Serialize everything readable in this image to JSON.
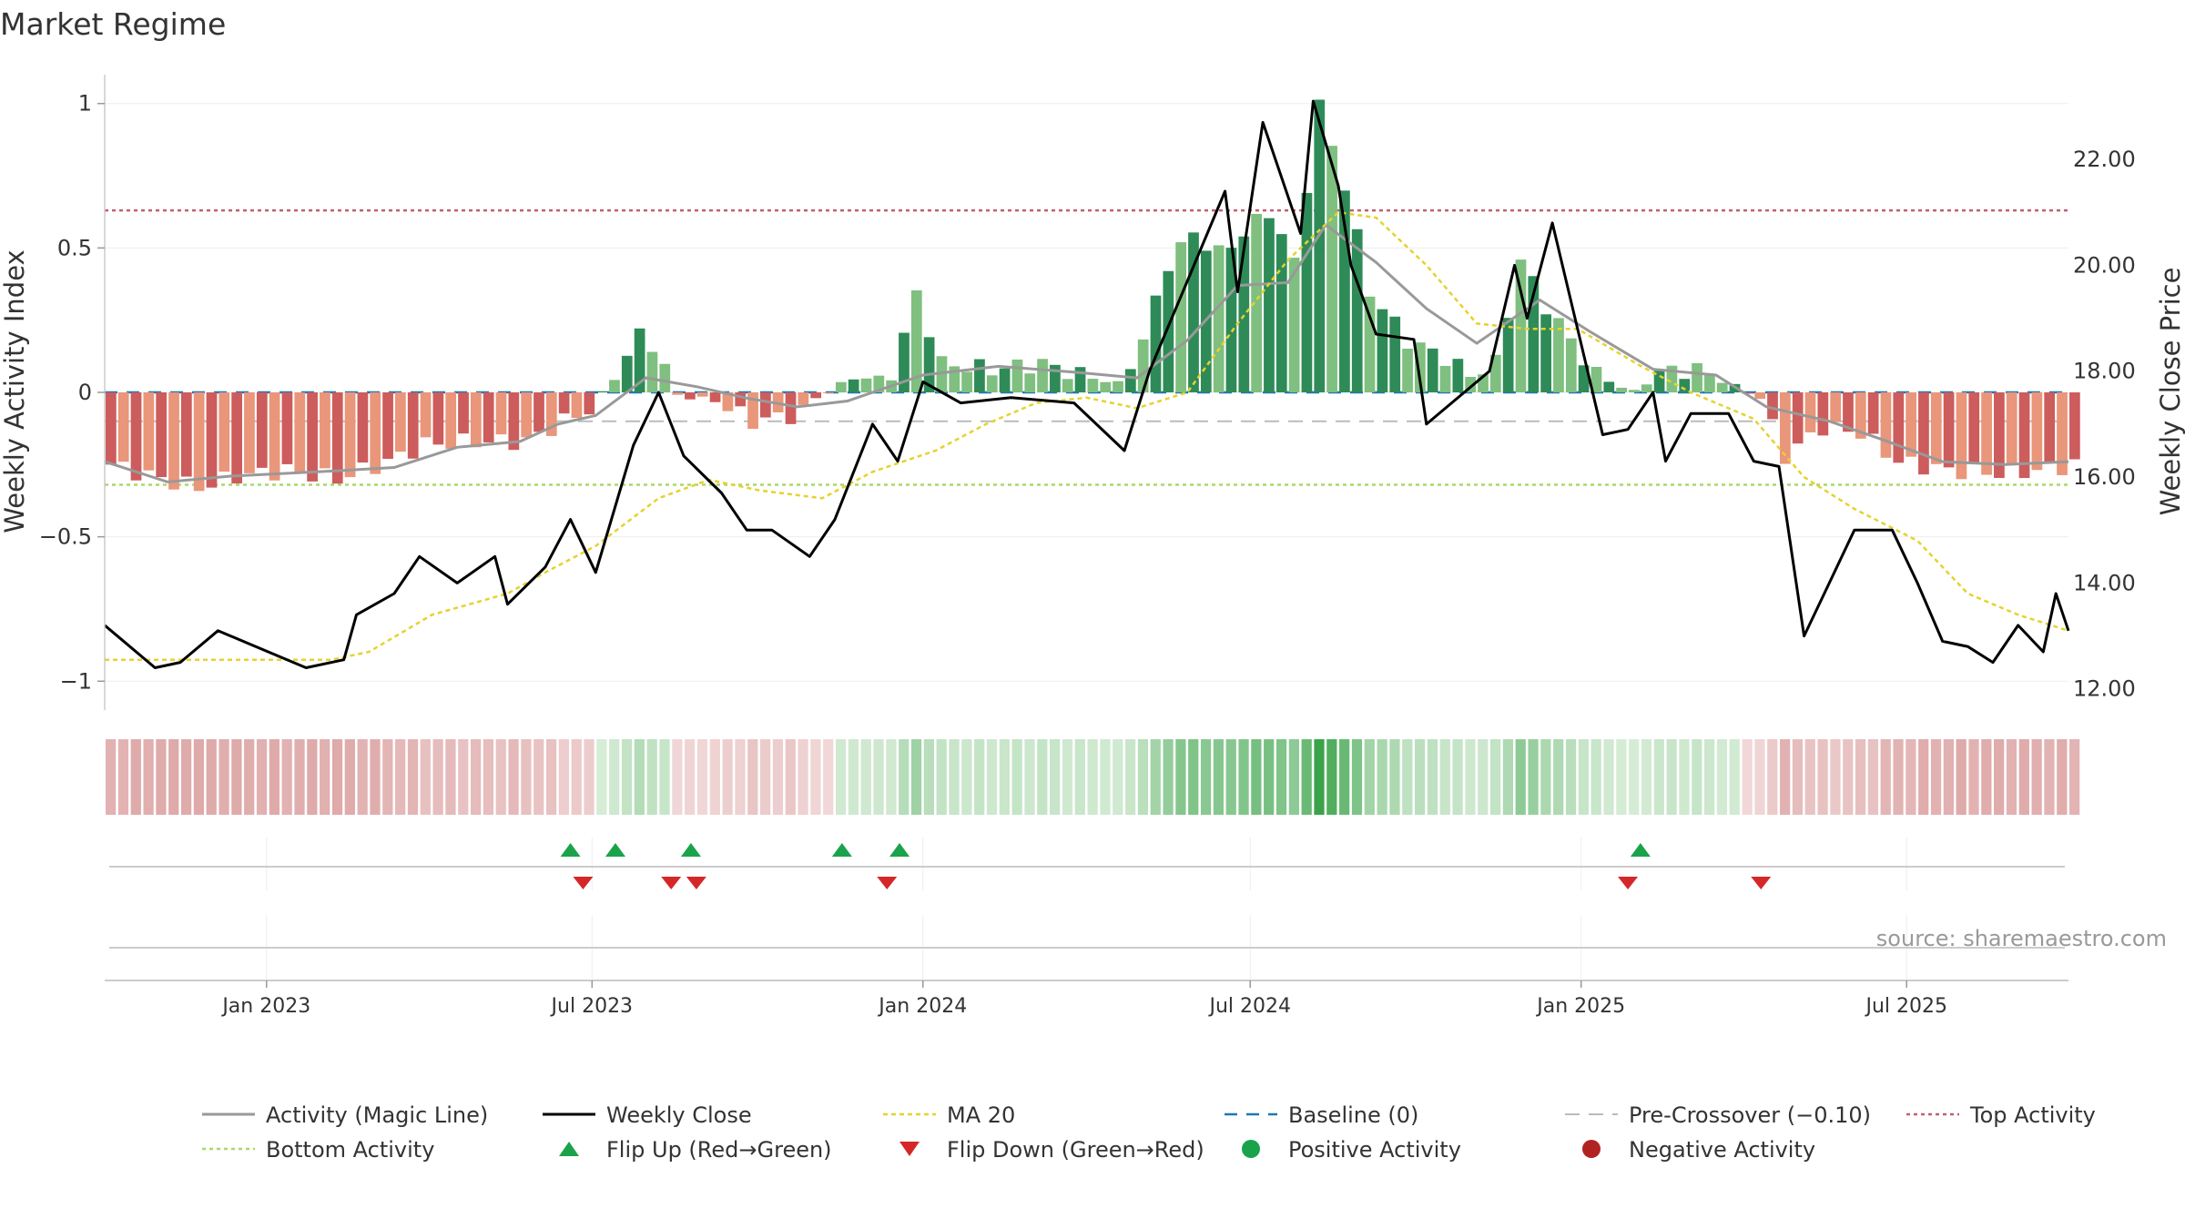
{
  "chart_data": {
    "type": "bar+line",
    "title": "Market Regime",
    "ylabel_left": "Weekly Activity Index",
    "ylabel_right": "Weekly Close Price",
    "ylim_left": [
      -1.1,
      1.1
    ],
    "ylim_right": [
      11.6,
      23.6
    ],
    "yticks_left": [
      {
        "value": 1,
        "label": "1"
      },
      {
        "value": 0.5,
        "label": "0.5"
      },
      {
        "value": 0,
        "label": "0"
      },
      {
        "value": -0.5,
        "label": "−0.5"
      },
      {
        "value": -1,
        "label": "−1"
      }
    ],
    "yticks_right": [
      {
        "value": 22,
        "label": "22.00"
      },
      {
        "value": 20,
        "label": "20.00"
      },
      {
        "value": 18,
        "label": "18.00"
      },
      {
        "value": 16,
        "label": "16.00"
      },
      {
        "value": 14,
        "label": "14.00"
      },
      {
        "value": 12,
        "label": "12.00"
      }
    ],
    "x_start": "2022-10-03",
    "x_end": "2025-09-29",
    "xticks": [
      {
        "date": "2023-01-01",
        "label": "Jan 2023"
      },
      {
        "date": "2023-07-01",
        "label": "Jul 2023"
      },
      {
        "date": "2024-01-01",
        "label": "Jan 2024"
      },
      {
        "date": "2024-07-01",
        "label": "Jul 2024"
      },
      {
        "date": "2025-01-01",
        "label": "Jan 2025"
      },
      {
        "date": "2025-07-01",
        "label": "Jul 2025"
      }
    ],
    "reference_lines": {
      "top_activity": 0.63,
      "bottom_activity": -0.32,
      "baseline": 0,
      "pre_crossover": -0.1
    },
    "activity_anchors": [
      [
        "2022-10-03",
        -0.25
      ],
      [
        "2022-10-31",
        -0.3
      ],
      [
        "2022-11-21",
        -0.33
      ],
      [
        "2022-12-12",
        -0.29
      ],
      [
        "2023-01-09",
        -0.27
      ],
      [
        "2023-02-06",
        -0.3
      ],
      [
        "2023-03-06",
        -0.24
      ],
      [
        "2023-03-27",
        -0.18
      ],
      [
        "2023-04-24",
        -0.17
      ],
      [
        "2023-05-22",
        -0.17
      ],
      [
        "2023-06-12",
        -0.1
      ],
      [
        "2023-06-26",
        -0.06
      ],
      [
        "2023-07-10",
        0.05
      ],
      [
        "2023-07-24",
        0.2
      ],
      [
        "2023-07-31",
        0.17
      ],
      [
        "2023-08-14",
        -0.01
      ],
      [
        "2023-09-04",
        -0.03
      ],
      [
        "2023-09-25",
        -0.1
      ],
      [
        "2023-10-16",
        -0.08
      ],
      [
        "2023-10-30",
        -0.02
      ],
      [
        "2023-11-20",
        0.05
      ],
      [
        "2023-12-11",
        0.05
      ],
      [
        "2023-12-25",
        0.34
      ],
      [
        "2024-01-08",
        0.1
      ],
      [
        "2024-02-05",
        0.08
      ],
      [
        "2024-03-04",
        0.1
      ],
      [
        "2024-03-25",
        0.06
      ],
      [
        "2024-04-15",
        0.03
      ],
      [
        "2024-04-29",
        0.18
      ],
      [
        "2024-05-13",
        0.45
      ],
      [
        "2024-05-27",
        0.55
      ],
      [
        "2024-06-10",
        0.48
      ],
      [
        "2024-06-24",
        0.55
      ],
      [
        "2024-07-08",
        0.63
      ],
      [
        "2024-07-22",
        0.45
      ],
      [
        "2024-08-05",
        0.99
      ],
      [
        "2024-08-19",
        0.72
      ],
      [
        "2024-09-02",
        0.35
      ],
      [
        "2024-09-23",
        0.18
      ],
      [
        "2024-10-14",
        0.12
      ],
      [
        "2024-10-28",
        0.06
      ],
      [
        "2024-11-11",
        0.1
      ],
      [
        "2024-11-25",
        0.46
      ],
      [
        "2024-12-09",
        0.3
      ],
      [
        "2024-12-23",
        0.18
      ],
      [
        "2025-01-06",
        0.06
      ],
      [
        "2025-01-27",
        0.0
      ],
      [
        "2025-02-10",
        0.07
      ],
      [
        "2025-03-03",
        0.08
      ],
      [
        "2025-03-24",
        0.02
      ],
      [
        "2025-04-07",
        -0.02
      ],
      [
        "2025-04-21",
        -0.22
      ],
      [
        "2025-05-12",
        -0.12
      ],
      [
        "2025-06-02",
        -0.14
      ],
      [
        "2025-06-23",
        -0.24
      ],
      [
        "2025-07-21",
        -0.27
      ],
      [
        "2025-08-18",
        -0.28
      ],
      [
        "2025-09-08",
        -0.27
      ],
      [
        "2025-09-29",
        -0.25
      ]
    ],
    "magic_line": [
      [
        "2022-10-03",
        -0.24
      ],
      [
        "2022-11-07",
        -0.31
      ],
      [
        "2022-12-12",
        -0.29
      ],
      [
        "2023-02-13",
        -0.27
      ],
      [
        "2023-03-13",
        -0.26
      ],
      [
        "2023-04-17",
        -0.19
      ],
      [
        "2023-05-22",
        -0.17
      ],
      [
        "2023-06-12",
        -0.11
      ],
      [
        "2023-07-03",
        -0.08
      ],
      [
        "2023-07-31",
        0.05
      ],
      [
        "2023-08-28",
        0.02
      ],
      [
        "2023-09-25",
        -0.02
      ],
      [
        "2023-10-23",
        -0.05
      ],
      [
        "2023-11-20",
        -0.03
      ],
      [
        "2024-01-01",
        0.06
      ],
      [
        "2024-02-12",
        0.09
      ],
      [
        "2024-03-25",
        0.07
      ],
      [
        "2024-04-29",
        0.05
      ],
      [
        "2024-05-27",
        0.18
      ],
      [
        "2024-06-24",
        0.37
      ],
      [
        "2024-07-22",
        0.38
      ],
      [
        "2024-08-12",
        0.58
      ],
      [
        "2024-09-09",
        0.45
      ],
      [
        "2024-10-07",
        0.29
      ],
      [
        "2024-11-04",
        0.17
      ],
      [
        "2024-12-09",
        0.32
      ],
      [
        "2025-01-06",
        0.21
      ],
      [
        "2025-02-10",
        0.08
      ],
      [
        "2025-03-17",
        0.06
      ],
      [
        "2025-04-14",
        -0.05
      ],
      [
        "2025-05-19",
        -0.1
      ],
      [
        "2025-06-16",
        -0.16
      ],
      [
        "2025-07-21",
        -0.24
      ],
      [
        "2025-08-25",
        -0.25
      ],
      [
        "2025-09-29",
        -0.24
      ]
    ],
    "weekly_close": [
      [
        "2022-10-03",
        13.2
      ],
      [
        "2022-10-31",
        12.4
      ],
      [
        "2022-11-14",
        12.5
      ],
      [
        "2022-12-05",
        13.1
      ],
      [
        "2022-12-26",
        12.8
      ],
      [
        "2023-01-23",
        12.4
      ],
      [
        "2023-02-13",
        12.55
      ],
      [
        "2023-02-20",
        13.4
      ],
      [
        "2023-03-13",
        13.8
      ],
      [
        "2023-03-27",
        14.5
      ],
      [
        "2023-04-17",
        14.0
      ],
      [
        "2023-05-08",
        14.5
      ],
      [
        "2023-05-15",
        13.6
      ],
      [
        "2023-06-05",
        14.3
      ],
      [
        "2023-06-19",
        15.2
      ],
      [
        "2023-07-03",
        14.2
      ],
      [
        "2023-07-24",
        16.6
      ],
      [
        "2023-08-07",
        17.6
      ],
      [
        "2023-08-21",
        16.4
      ],
      [
        "2023-09-11",
        15.7
      ],
      [
        "2023-09-25",
        15.0
      ],
      [
        "2023-10-09",
        15.0
      ],
      [
        "2023-10-30",
        14.5
      ],
      [
        "2023-11-13",
        15.2
      ],
      [
        "2023-12-04",
        17.0
      ],
      [
        "2023-12-18",
        16.3
      ],
      [
        "2024-01-01",
        17.8
      ],
      [
        "2024-01-22",
        17.4
      ],
      [
        "2024-02-19",
        17.5
      ],
      [
        "2024-03-25",
        17.4
      ],
      [
        "2024-04-22",
        16.5
      ],
      [
        "2024-05-06",
        18.0
      ],
      [
        "2024-05-27",
        19.7
      ],
      [
        "2024-06-17",
        21.4
      ],
      [
        "2024-06-24",
        19.5
      ],
      [
        "2024-07-08",
        22.7
      ],
      [
        "2024-07-29",
        20.6
      ],
      [
        "2024-08-05",
        23.1
      ],
      [
        "2024-08-19",
        21.5
      ],
      [
        "2024-08-26",
        20.0
      ],
      [
        "2024-09-09",
        18.7
      ],
      [
        "2024-09-30",
        18.6
      ],
      [
        "2024-10-07",
        17.0
      ],
      [
        "2024-10-28",
        17.6
      ],
      [
        "2024-11-11",
        18.0
      ],
      [
        "2024-11-25",
        20.0
      ],
      [
        "2024-12-02",
        19.0
      ],
      [
        "2024-12-16",
        20.8
      ],
      [
        "2024-12-30",
        18.8
      ],
      [
        "2025-01-13",
        16.8
      ],
      [
        "2025-01-27",
        16.9
      ],
      [
        "2025-02-10",
        17.6
      ],
      [
        "2025-02-17",
        16.3
      ],
      [
        "2025-03-03",
        17.2
      ],
      [
        "2025-03-24",
        17.2
      ],
      [
        "2025-04-07",
        16.3
      ],
      [
        "2025-04-21",
        16.2
      ],
      [
        "2025-05-05",
        13.0
      ],
      [
        "2025-05-19",
        14.0
      ],
      [
        "2025-06-02",
        15.0
      ],
      [
        "2025-06-23",
        15.0
      ],
      [
        "2025-07-07",
        14.0
      ],
      [
        "2025-07-21",
        12.9
      ],
      [
        "2025-08-04",
        12.8
      ],
      [
        "2025-08-18",
        12.5
      ],
      [
        "2025-09-01",
        13.2
      ],
      [
        "2025-09-15",
        12.7
      ],
      [
        "2025-09-22",
        13.8
      ],
      [
        "2025-09-29",
        13.1
      ]
    ],
    "ma20": [
      [
        "2022-10-03",
        12.55
      ],
      [
        "2023-02-06",
        12.55
      ],
      [
        "2023-02-27",
        12.7
      ],
      [
        "2023-04-03",
        13.4
      ],
      [
        "2023-05-15",
        13.8
      ],
      [
        "2023-06-05",
        14.2
      ],
      [
        "2023-07-03",
        14.7
      ],
      [
        "2023-08-07",
        15.6
      ],
      [
        "2023-09-04",
        15.95
      ],
      [
        "2023-10-02",
        15.75
      ],
      [
        "2023-11-06",
        15.6
      ],
      [
        "2023-12-04",
        16.1
      ],
      [
        "2024-01-08",
        16.5
      ],
      [
        "2024-02-05",
        17.0
      ],
      [
        "2024-03-04",
        17.4
      ],
      [
        "2024-04-01",
        17.5
      ],
      [
        "2024-04-29",
        17.3
      ],
      [
        "2024-05-27",
        17.6
      ],
      [
        "2024-06-24",
        18.9
      ],
      [
        "2024-07-22",
        20.1
      ],
      [
        "2024-08-19",
        21.0
      ],
      [
        "2024-09-09",
        20.9
      ],
      [
        "2024-10-07",
        20.0
      ],
      [
        "2024-11-04",
        18.9
      ],
      [
        "2024-12-02",
        18.8
      ],
      [
        "2024-12-30",
        18.8
      ],
      [
        "2025-02-03",
        18.1
      ],
      [
        "2025-03-03",
        17.6
      ],
      [
        "2025-04-07",
        17.1
      ],
      [
        "2025-05-05",
        16.0
      ],
      [
        "2025-06-02",
        15.4
      ],
      [
        "2025-07-07",
        14.8
      ],
      [
        "2025-08-04",
        13.8
      ],
      [
        "2025-09-01",
        13.4
      ],
      [
        "2025-09-29",
        13.1
      ]
    ],
    "flip_up": [
      "2023-06-19",
      "2023-07-14",
      "2023-08-25",
      "2023-11-17",
      "2023-12-19",
      "2025-02-03"
    ],
    "flip_down": [
      "2023-06-26",
      "2023-08-14",
      "2023-08-28",
      "2023-12-12",
      "2025-01-27",
      "2025-04-11"
    ],
    "legend": [
      {
        "key": "magic",
        "label": "Activity (Magic Line)"
      },
      {
        "key": "close",
        "label": "Weekly Close"
      },
      {
        "key": "ma20",
        "label": "MA 20"
      },
      {
        "key": "baseline",
        "label": "Baseline (0)"
      },
      {
        "key": "precross",
        "label": "Pre-Crossover (−0.10)"
      },
      {
        "key": "top",
        "label": "Top Activity"
      },
      {
        "key": "bottom",
        "label": "Bottom Activity"
      },
      {
        "key": "flipup",
        "label": "Flip Up (Red→Green)"
      },
      {
        "key": "flipdown",
        "label": "Flip Down (Green→Red)"
      },
      {
        "key": "pos",
        "label": "Positive Activity"
      },
      {
        "key": "neg",
        "label": "Negative Activity"
      }
    ],
    "source": "source: sharemaestro.com",
    "colors": {
      "pos_dark": "#2e8b57",
      "pos_light": "#7fbf7f",
      "neg_dark": "#cd5c5c",
      "neg_light": "#e9967a",
      "magic": "#999999",
      "close": "#000000",
      "ma20": "#e6d22e",
      "baseline": "#1f77b4",
      "precross": "#bbbbbb",
      "top": "#c06070",
      "bottom": "#a8d86a",
      "flip_up": "#1aa34a",
      "flip_down": "#d62728",
      "pos_dot": "#1aa34a",
      "neg_dot": "#b22222"
    }
  }
}
